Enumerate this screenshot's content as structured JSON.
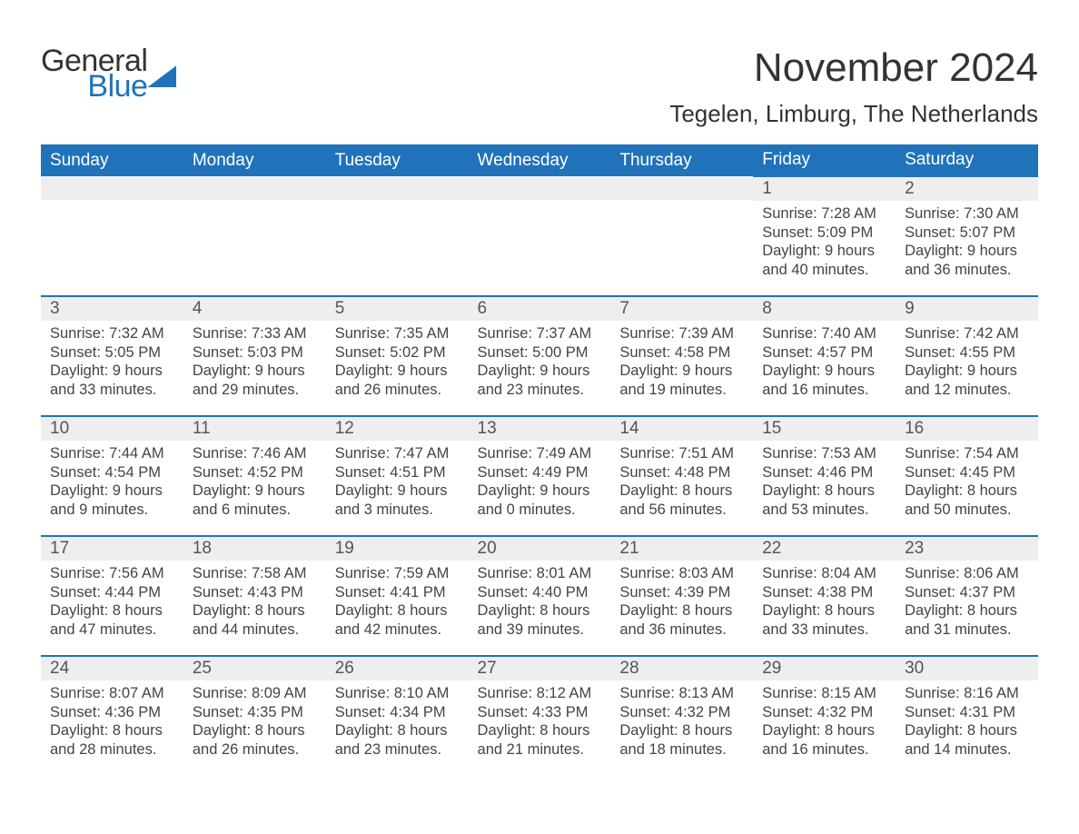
{
  "brand": {
    "line1": "General",
    "line2": "Blue",
    "accent_color": "#2073bb"
  },
  "title": "November 2024",
  "location": "Tegelen, Limburg, The Netherlands",
  "columns": [
    "Sunday",
    "Monday",
    "Tuesday",
    "Wednesday",
    "Thursday",
    "Friday",
    "Saturday"
  ],
  "header_bg": "#2073bb",
  "header_fg": "#ffffff",
  "daynum_bg": "#eeeeee",
  "cell_border_color": "#2073bb",
  "text_color": "#444444",
  "weeks": [
    [
      null,
      null,
      null,
      null,
      null,
      {
        "n": "1",
        "sunrise": "7:28 AM",
        "sunset": "5:09 PM",
        "daylight_l1": "Daylight: 9 hours",
        "daylight_l2": "and 40 minutes."
      },
      {
        "n": "2",
        "sunrise": "7:30 AM",
        "sunset": "5:07 PM",
        "daylight_l1": "Daylight: 9 hours",
        "daylight_l2": "and 36 minutes."
      }
    ],
    [
      {
        "n": "3",
        "sunrise": "7:32 AM",
        "sunset": "5:05 PM",
        "daylight_l1": "Daylight: 9 hours",
        "daylight_l2": "and 33 minutes."
      },
      {
        "n": "4",
        "sunrise": "7:33 AM",
        "sunset": "5:03 PM",
        "daylight_l1": "Daylight: 9 hours",
        "daylight_l2": "and 29 minutes."
      },
      {
        "n": "5",
        "sunrise": "7:35 AM",
        "sunset": "5:02 PM",
        "daylight_l1": "Daylight: 9 hours",
        "daylight_l2": "and 26 minutes."
      },
      {
        "n": "6",
        "sunrise": "7:37 AM",
        "sunset": "5:00 PM",
        "daylight_l1": "Daylight: 9 hours",
        "daylight_l2": "and 23 minutes."
      },
      {
        "n": "7",
        "sunrise": "7:39 AM",
        "sunset": "4:58 PM",
        "daylight_l1": "Daylight: 9 hours",
        "daylight_l2": "and 19 minutes."
      },
      {
        "n": "8",
        "sunrise": "7:40 AM",
        "sunset": "4:57 PM",
        "daylight_l1": "Daylight: 9 hours",
        "daylight_l2": "and 16 minutes."
      },
      {
        "n": "9",
        "sunrise": "7:42 AM",
        "sunset": "4:55 PM",
        "daylight_l1": "Daylight: 9 hours",
        "daylight_l2": "and 12 minutes."
      }
    ],
    [
      {
        "n": "10",
        "sunrise": "7:44 AM",
        "sunset": "4:54 PM",
        "daylight_l1": "Daylight: 9 hours",
        "daylight_l2": "and 9 minutes."
      },
      {
        "n": "11",
        "sunrise": "7:46 AM",
        "sunset": "4:52 PM",
        "daylight_l1": "Daylight: 9 hours",
        "daylight_l2": "and 6 minutes."
      },
      {
        "n": "12",
        "sunrise": "7:47 AM",
        "sunset": "4:51 PM",
        "daylight_l1": "Daylight: 9 hours",
        "daylight_l2": "and 3 minutes."
      },
      {
        "n": "13",
        "sunrise": "7:49 AM",
        "sunset": "4:49 PM",
        "daylight_l1": "Daylight: 9 hours",
        "daylight_l2": "and 0 minutes."
      },
      {
        "n": "14",
        "sunrise": "7:51 AM",
        "sunset": "4:48 PM",
        "daylight_l1": "Daylight: 8 hours",
        "daylight_l2": "and 56 minutes."
      },
      {
        "n": "15",
        "sunrise": "7:53 AM",
        "sunset": "4:46 PM",
        "daylight_l1": "Daylight: 8 hours",
        "daylight_l2": "and 53 minutes."
      },
      {
        "n": "16",
        "sunrise": "7:54 AM",
        "sunset": "4:45 PM",
        "daylight_l1": "Daylight: 8 hours",
        "daylight_l2": "and 50 minutes."
      }
    ],
    [
      {
        "n": "17",
        "sunrise": "7:56 AM",
        "sunset": "4:44 PM",
        "daylight_l1": "Daylight: 8 hours",
        "daylight_l2": "and 47 minutes."
      },
      {
        "n": "18",
        "sunrise": "7:58 AM",
        "sunset": "4:43 PM",
        "daylight_l1": "Daylight: 8 hours",
        "daylight_l2": "and 44 minutes."
      },
      {
        "n": "19",
        "sunrise": "7:59 AM",
        "sunset": "4:41 PM",
        "daylight_l1": "Daylight: 8 hours",
        "daylight_l2": "and 42 minutes."
      },
      {
        "n": "20",
        "sunrise": "8:01 AM",
        "sunset": "4:40 PM",
        "daylight_l1": "Daylight: 8 hours",
        "daylight_l2": "and 39 minutes."
      },
      {
        "n": "21",
        "sunrise": "8:03 AM",
        "sunset": "4:39 PM",
        "daylight_l1": "Daylight: 8 hours",
        "daylight_l2": "and 36 minutes."
      },
      {
        "n": "22",
        "sunrise": "8:04 AM",
        "sunset": "4:38 PM",
        "daylight_l1": "Daylight: 8 hours",
        "daylight_l2": "and 33 minutes."
      },
      {
        "n": "23",
        "sunrise": "8:06 AM",
        "sunset": "4:37 PM",
        "daylight_l1": "Daylight: 8 hours",
        "daylight_l2": "and 31 minutes."
      }
    ],
    [
      {
        "n": "24",
        "sunrise": "8:07 AM",
        "sunset": "4:36 PM",
        "daylight_l1": "Daylight: 8 hours",
        "daylight_l2": "and 28 minutes."
      },
      {
        "n": "25",
        "sunrise": "8:09 AM",
        "sunset": "4:35 PM",
        "daylight_l1": "Daylight: 8 hours",
        "daylight_l2": "and 26 minutes."
      },
      {
        "n": "26",
        "sunrise": "8:10 AM",
        "sunset": "4:34 PM",
        "daylight_l1": "Daylight: 8 hours",
        "daylight_l2": "and 23 minutes."
      },
      {
        "n": "27",
        "sunrise": "8:12 AM",
        "sunset": "4:33 PM",
        "daylight_l1": "Daylight: 8 hours",
        "daylight_l2": "and 21 minutes."
      },
      {
        "n": "28",
        "sunrise": "8:13 AM",
        "sunset": "4:32 PM",
        "daylight_l1": "Daylight: 8 hours",
        "daylight_l2": "and 18 minutes."
      },
      {
        "n": "29",
        "sunrise": "8:15 AM",
        "sunset": "4:32 PM",
        "daylight_l1": "Daylight: 8 hours",
        "daylight_l2": "and 16 minutes."
      },
      {
        "n": "30",
        "sunrise": "8:16 AM",
        "sunset": "4:31 PM",
        "daylight_l1": "Daylight: 8 hours",
        "daylight_l2": "and 14 minutes."
      }
    ]
  ],
  "labels": {
    "sunrise_prefix": "Sunrise: ",
    "sunset_prefix": "Sunset: "
  }
}
